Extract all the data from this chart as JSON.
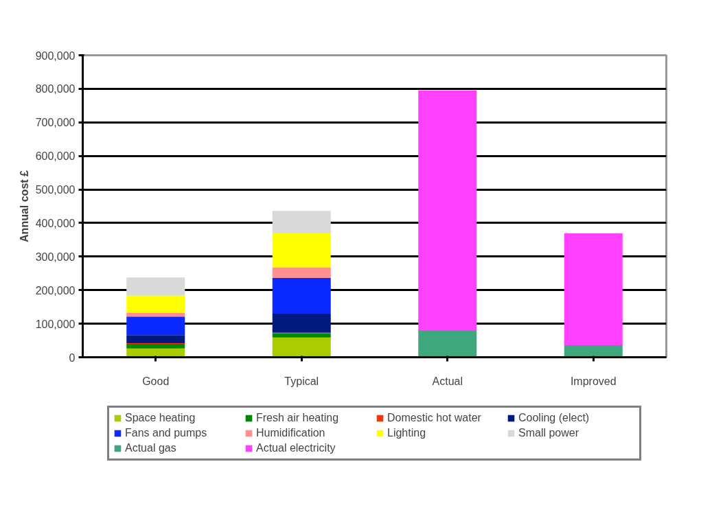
{
  "chart_data": {
    "type": "bar",
    "stacked": true,
    "ylabel": "Annual cost £",
    "categories": [
      "Good",
      "Typical",
      "Actual",
      "Improved"
    ],
    "series": [
      {
        "name": "Space heating",
        "color": "#aacc00",
        "values": [
          26000,
          59000,
          null,
          null
        ]
      },
      {
        "name": "Fresh air heating",
        "color": "#008800",
        "values": [
          14000,
          12000,
          null,
          null
        ]
      },
      {
        "name": "Domestic hot water",
        "color": "#ff3300",
        "values": [
          2000,
          2000,
          null,
          null
        ]
      },
      {
        "name": "Cooling (elect)",
        "color": "#001a80",
        "values": [
          24000,
          57000,
          null,
          null
        ]
      },
      {
        "name": "Fans and pumps",
        "color": "#0a2aff",
        "values": [
          55000,
          106000,
          null,
          null
        ]
      },
      {
        "name": "Humidification",
        "color": "#ff9090",
        "values": [
          12000,
          32000,
          null,
          null
        ]
      },
      {
        "name": "Lighting",
        "color": "#ffff00",
        "values": [
          51000,
          101000,
          null,
          null
        ]
      },
      {
        "name": "Small power",
        "color": "#d9d9d9",
        "values": [
          54000,
          67000,
          null,
          null
        ]
      },
      {
        "name": "Actual gas",
        "color": "#3fa77e",
        "values": [
          null,
          null,
          79000,
          36000
        ]
      },
      {
        "name": "Actual electricity",
        "color": "#ff40ff",
        "values": [
          null,
          null,
          716000,
          333000
        ]
      }
    ],
    "ylim": [
      0,
      900000
    ],
    "yticks": [
      0,
      {
        "value": 100000,
        "label": "100,000"
      },
      {
        "value": 200000,
        "label": "200,000"
      },
      {
        "value": 300000,
        "label": "300,000"
      },
      {
        "value": 400000,
        "label": "400,000"
      },
      {
        "value": 500000,
        "label": "500,000"
      },
      {
        "value": 600000,
        "label": "600,000"
      },
      {
        "value": 700000,
        "label": "700,000"
      },
      {
        "value": 800000,
        "label": "800,000"
      },
      {
        "value": 900000,
        "label": "900,000"
      }
    ],
    "grid": "y",
    "legend": "bottom"
  }
}
